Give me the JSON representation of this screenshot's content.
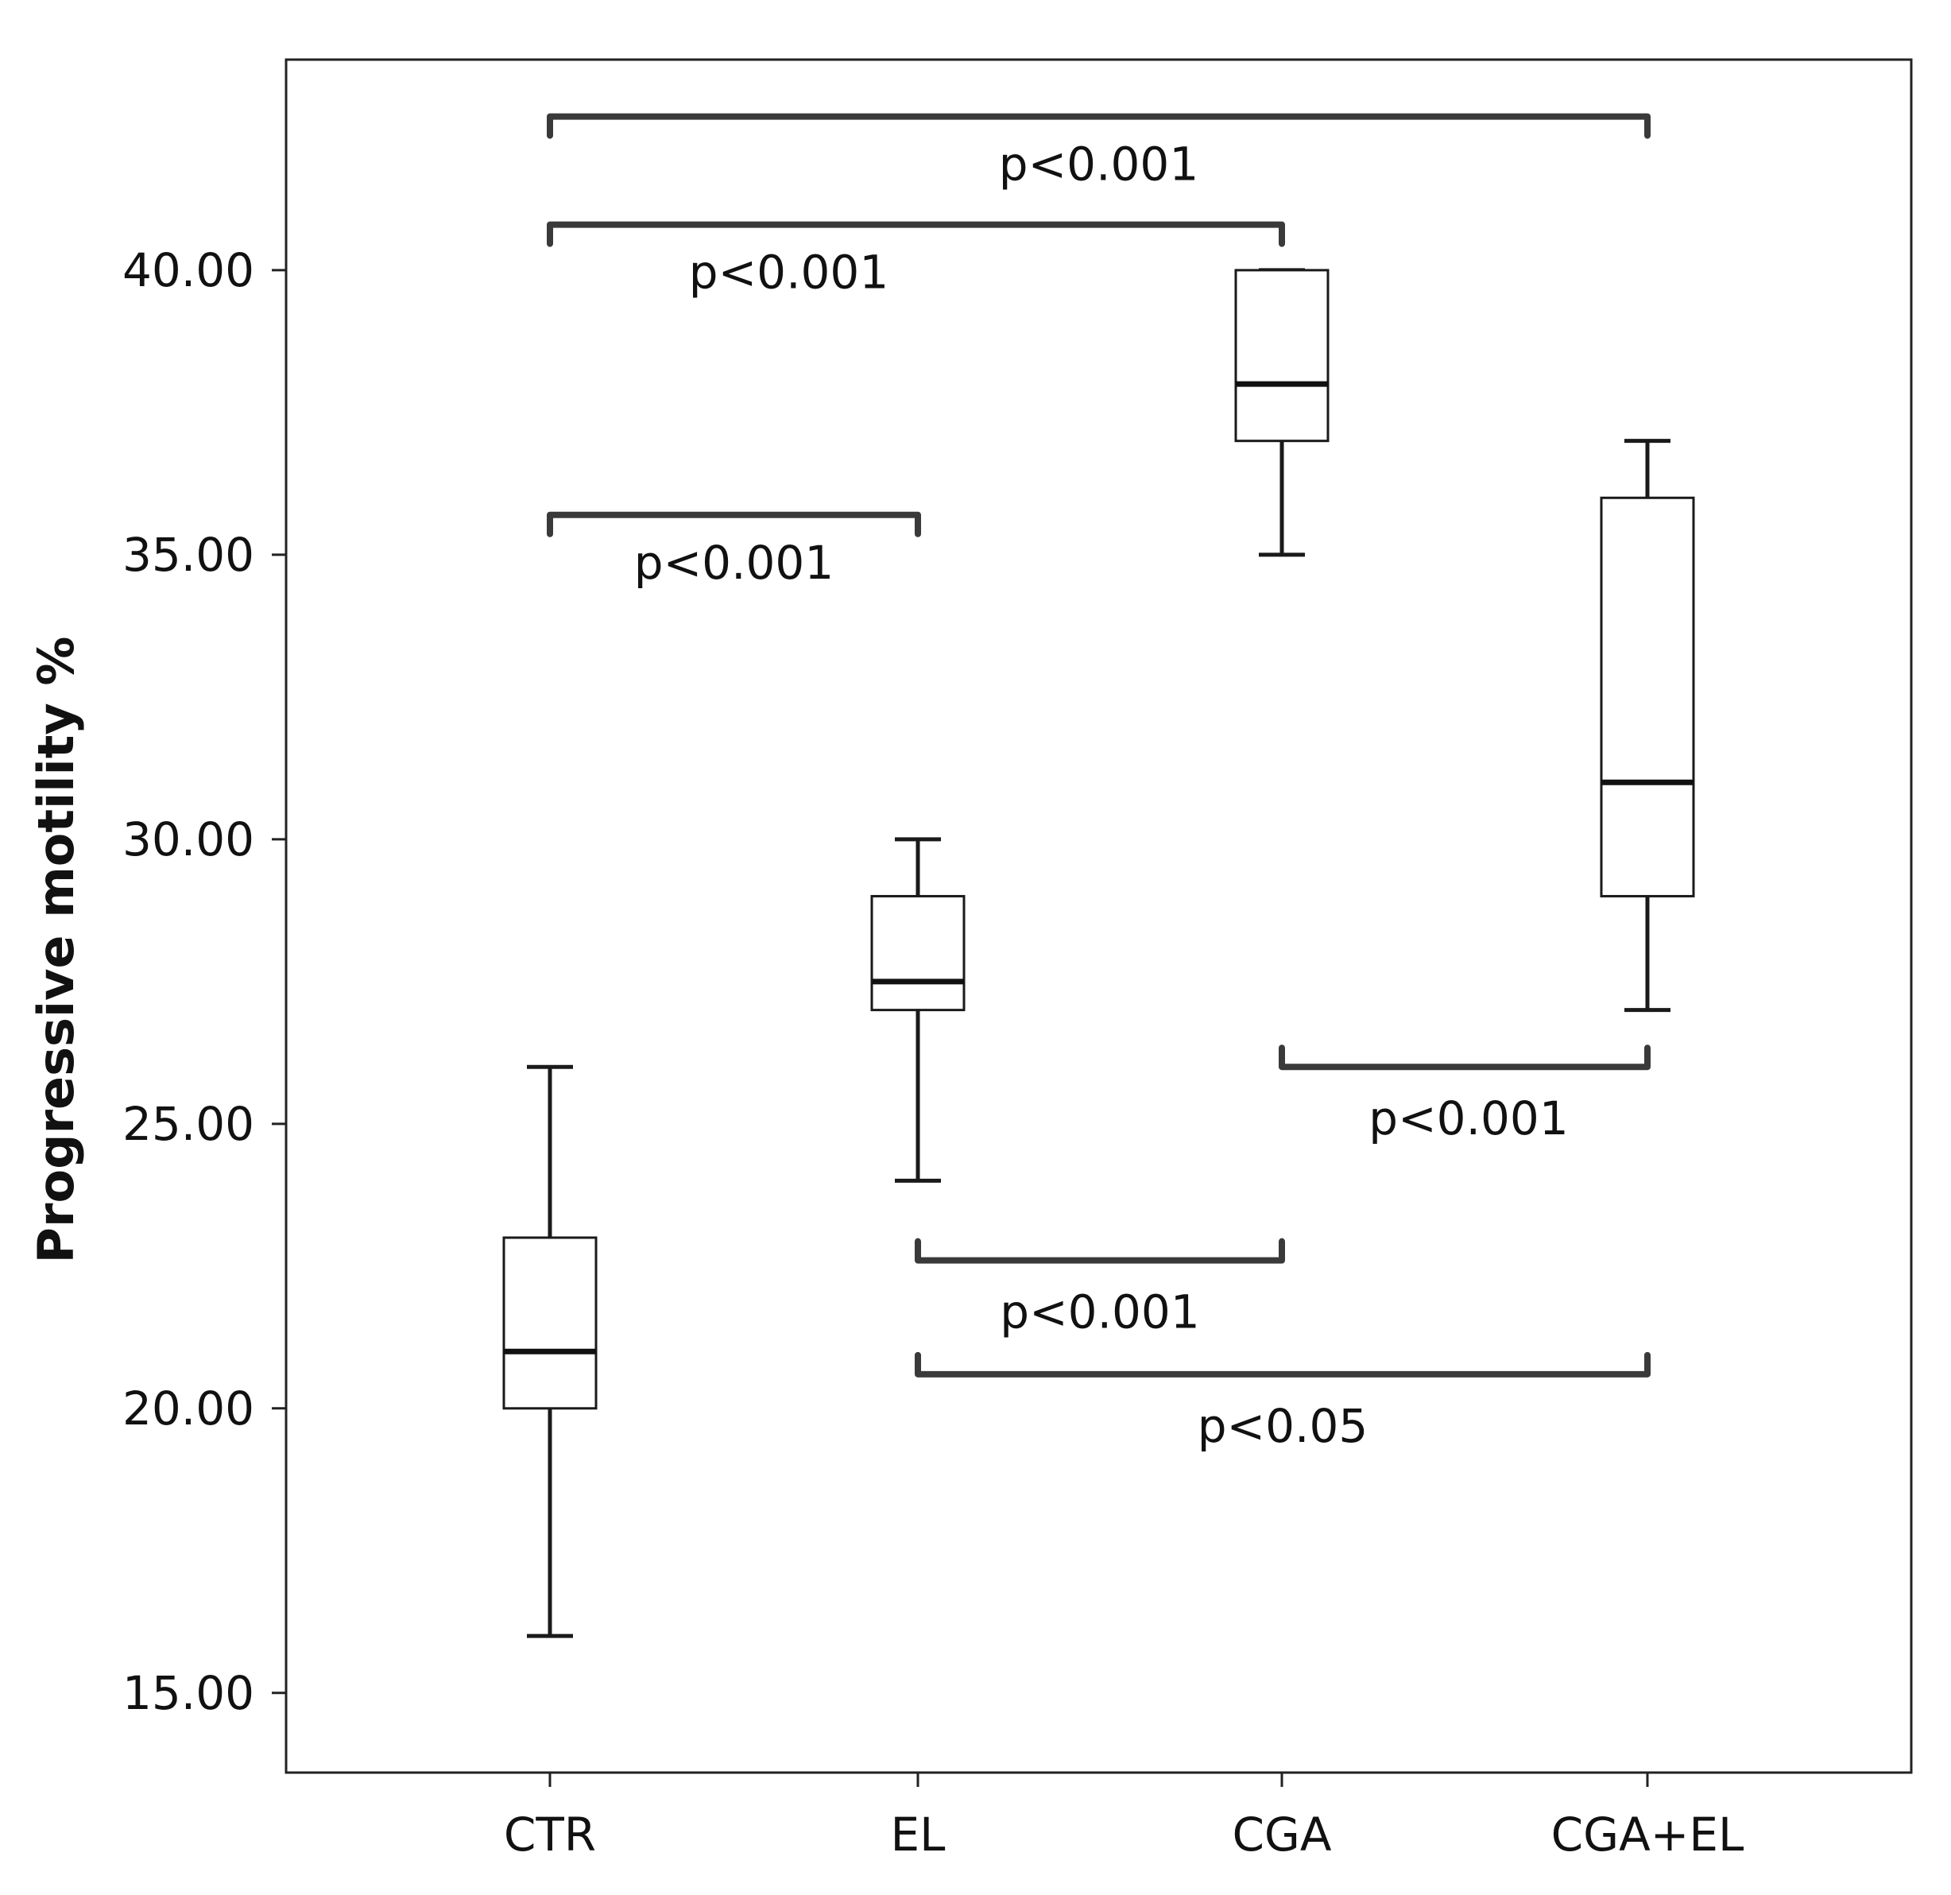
{
  "chart_data": {
    "type": "boxplot",
    "title": "",
    "xlabel": "",
    "ylabel": "Progressive motility %",
    "ylim": [
      13.6,
      43.7
    ],
    "yticks": [
      15,
      20,
      25,
      30,
      35,
      40
    ],
    "ytick_labels": [
      "15.00",
      "20.00",
      "25.00",
      "30.00",
      "35.00",
      "40.00"
    ],
    "categories": [
      "CTR",
      "EL",
      "CGA",
      "CGA+EL"
    ],
    "boxes": [
      {
        "category": "CTR",
        "min": 16,
        "q1": 20,
        "median": 21,
        "q3": 23,
        "max": 26
      },
      {
        "category": "EL",
        "min": 24,
        "q1": 27,
        "median": 27.5,
        "q3": 29,
        "max": 30
      },
      {
        "category": "CGA",
        "min": 35,
        "q1": 37,
        "median": 38,
        "q3": 40,
        "max": 40
      },
      {
        "category": "CGA+EL",
        "min": 27,
        "q1": 29,
        "median": 31,
        "q3": 36,
        "max": 37
      }
    ],
    "comparisons": [
      {
        "from": "CTR",
        "to": "CGA+EL",
        "label": "p<0.001",
        "y": 42.7,
        "direction": "down"
      },
      {
        "from": "CTR",
        "to": "CGA",
        "label": "p<0.001",
        "y": 40.8,
        "direction": "down"
      },
      {
        "from": "CTR",
        "to": "EL",
        "label": "p<0.001",
        "y": 35.7,
        "direction": "down"
      },
      {
        "from": "CGA",
        "to": "CGA+EL",
        "label": "p<0.001",
        "y": 26.0,
        "direction": "up"
      },
      {
        "from": "EL",
        "to": "CGA",
        "label": "p<0.001",
        "y": 22.6,
        "direction": "up"
      },
      {
        "from": "EL",
        "to": "CGA+EL",
        "label": "p<0.05",
        "y": 20.6,
        "direction": "up"
      }
    ],
    "grid": false,
    "legend": "none"
  }
}
